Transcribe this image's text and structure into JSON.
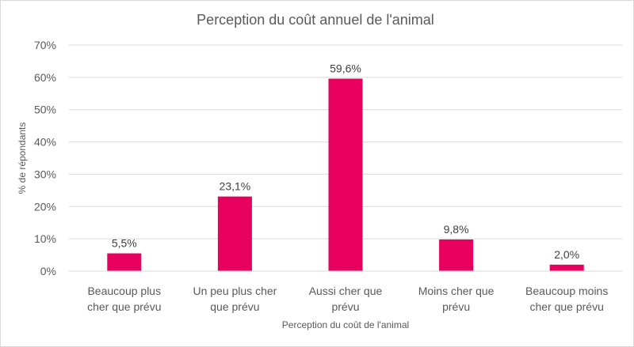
{
  "chart_data": {
    "type": "bar",
    "title": "Perception du coût annuel de l'animal",
    "xlabel": "Perception du coût de l'animal",
    "ylabel": "% de répondants",
    "categories": [
      [
        "Beaucoup plus",
        "cher que prévu"
      ],
      [
        "Un peu plus cher",
        "que prévu"
      ],
      [
        "Aussi cher que",
        "prévu"
      ],
      [
        "Moins cher que",
        "prévu"
      ],
      [
        "Beaucoup moins",
        "cher que prévu"
      ]
    ],
    "values": [
      5.5,
      23.1,
      59.6,
      9.8,
      2.0
    ],
    "data_labels": [
      "5,5%",
      "23,1%",
      "59,6%",
      "9,8%",
      "2,0%"
    ],
    "ylim": [
      0,
      70
    ],
    "yticks": [
      0,
      10,
      20,
      30,
      40,
      50,
      60,
      70
    ],
    "ytick_labels": [
      "0%",
      "10%",
      "20%",
      "30%",
      "40%",
      "50%",
      "60%",
      "70%"
    ],
    "bar_color": "#e8005f",
    "grid": true,
    "legend": "none"
  }
}
